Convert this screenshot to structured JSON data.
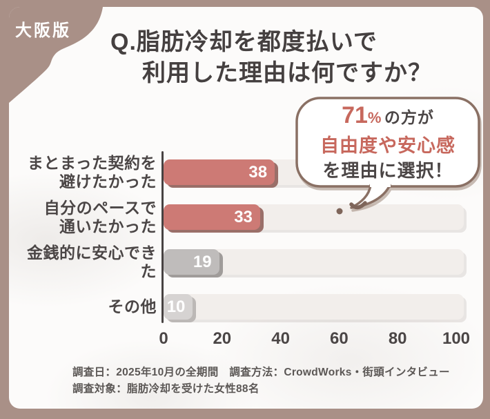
{
  "badge": {
    "label": "大阪版"
  },
  "title": {
    "line1": "Q.脂肪冷却を都度払いで",
    "line2": "利用した理由は何ですか？"
  },
  "callout": {
    "percent_num": "71",
    "percent_sign": "%",
    "suffix": "の方が",
    "highlight": "自由度や安心感",
    "tail_line": "を理由に選択！"
  },
  "chart_data": {
    "type": "bar",
    "orientation": "horizontal",
    "title": "Q.脂肪冷却を都度払いで利用した理由は何ですか？",
    "categories": [
      "まとまった契約を避けたかった",
      "自分のペースで通いたかった",
      "金銭的に安心できた",
      "その他"
    ],
    "values": [
      38,
      33,
      19,
      10
    ],
    "xlim": [
      0,
      100
    ],
    "x_ticks": [
      0,
      20,
      40,
      60,
      80,
      100
    ],
    "grid": false,
    "value_label_position": "inside-end",
    "annotation": "71%の方が自由度や安心感を理由に選択！"
  },
  "rows": [
    {
      "label_lines": [
        "まとまった契約を",
        "避けたかった"
      ],
      "value": 38,
      "bar_color": "#cd7a75",
      "shadow_color": "#9a6f69"
    },
    {
      "label_lines": [
        "自分のペースで",
        "通いたかった"
      ],
      "value": 33,
      "bar_color": "#cd7a75",
      "shadow_color": "#9a6f69"
    },
    {
      "label_lines": [
        "金銭的に安心できた"
      ],
      "value": 19,
      "bar_color": "#bfbcbb",
      "shadow_color": "#a09c9a"
    },
    {
      "label_lines": [
        "その他"
      ],
      "value": 10,
      "bar_color": "#d6d3d2",
      "shadow_color": "#bcb8b6"
    }
  ],
  "footer": {
    "line1": "調査日：2025年10月の全期間　調査方法：CrowdWorks・街頭インタビュー",
    "line2": "調査対象：脂肪冷却を受けた女性88名"
  },
  "colors": {
    "frame": "#a99087",
    "content_bg": "#fcfbfa",
    "track": "#f2eeeb",
    "axis": "#474242",
    "label_text": "#4b4646",
    "title_text": "#454040",
    "accent_red": "#c7685d",
    "bubble_border": "#8a7064"
  }
}
